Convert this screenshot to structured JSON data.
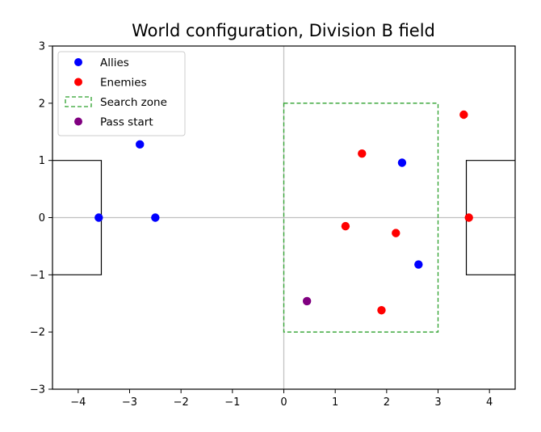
{
  "chart_data": {
    "type": "scatter",
    "title": "World configuration, Division B field",
    "xlabel": "",
    "ylabel": "",
    "xlim": [
      -4.5,
      4.5
    ],
    "ylim": [
      -3,
      3
    ],
    "xticks": [
      -4,
      -3,
      -2,
      -1,
      0,
      1,
      2,
      3,
      4
    ],
    "yticks": [
      -3,
      -2,
      -1,
      0,
      1,
      2,
      3
    ],
    "grid": false,
    "legend_position": "top-left",
    "reference_lines": {
      "x": 0,
      "y": 0,
      "color": "#bfbfbf"
    },
    "goals": [
      {
        "x_edge": -3.55,
        "x_outer": -4.5,
        "y_min": -1,
        "y_max": 1
      },
      {
        "x_edge": 3.55,
        "x_outer": 4.5,
        "y_min": -1,
        "y_max": 1
      }
    ],
    "search_zone": {
      "x_min": 0,
      "x_max": 3,
      "y_min": -2,
      "y_max": 2,
      "color": "#2ca02c"
    },
    "series": [
      {
        "name": "Allies",
        "color": "#0000ff",
        "points": [
          [
            -3.6,
            0.0
          ],
          [
            -2.5,
            0.0
          ],
          [
            -2.8,
            1.28
          ],
          [
            2.3,
            0.96
          ],
          [
            2.62,
            -0.82
          ]
        ]
      },
      {
        "name": "Enemies",
        "color": "#ff0000",
        "points": [
          [
            1.52,
            1.12
          ],
          [
            3.5,
            1.8
          ],
          [
            1.2,
            -0.15
          ],
          [
            2.18,
            -0.27
          ],
          [
            1.9,
            -1.62
          ],
          [
            3.6,
            0.0
          ]
        ]
      },
      {
        "name": "Pass start",
        "color": "#800080",
        "points": [
          [
            0.45,
            -1.46
          ]
        ]
      }
    ],
    "legend": [
      {
        "label": "Allies",
        "kind": "marker",
        "color": "#0000ff"
      },
      {
        "label": "Enemies",
        "kind": "marker",
        "color": "#ff0000"
      },
      {
        "label": "Search zone",
        "kind": "dashed-box",
        "color": "#2ca02c"
      },
      {
        "label": "Pass start",
        "kind": "marker",
        "color": "#800080"
      }
    ]
  }
}
